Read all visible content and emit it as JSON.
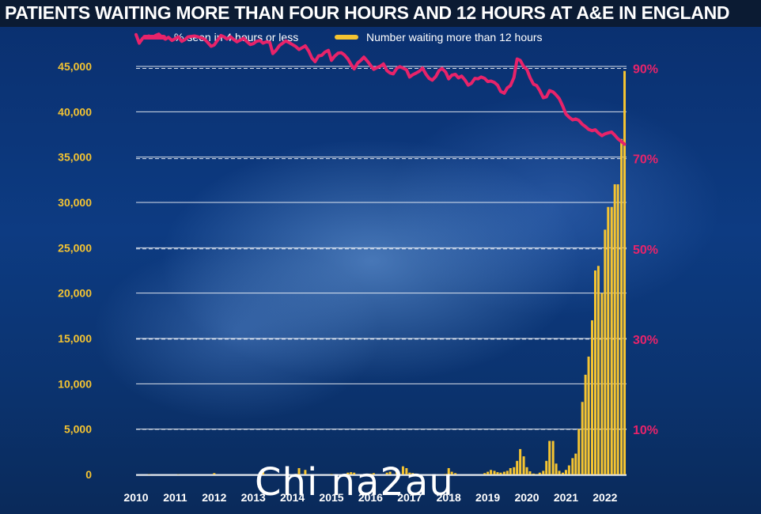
{
  "title": "PATIENTS WAITING MORE THAN FOUR HOURS AND 12 HOURS AT A&E IN ENGLAND",
  "watermark": "Chi na2au",
  "colors": {
    "line": "#e8236a",
    "bars": "#f5c431",
    "background": "#0d3b82"
  },
  "chart_data": {
    "type": "line+bar",
    "title": "PATIENTS WAITING MORE THAN FOUR HOURS AND 12 HOURS AT A&E IN ENGLAND",
    "grid": true,
    "legend_position": "top",
    "x_ticks": [
      "2010",
      "2011",
      "2012",
      "2013",
      "2014",
      "2015",
      "2016",
      "2017",
      "2018",
      "2019",
      "2020",
      "2021",
      "2022"
    ],
    "x_range": [
      2010.0,
      2022.55
    ],
    "left_axis": {
      "label": "",
      "range": [
        0,
        45000
      ],
      "ticks": [
        "45,000",
        "40,000",
        "35,000",
        "30,000",
        "25,000",
        "20,000",
        "15,000",
        "10,000",
        "5,000",
        "0"
      ]
    },
    "right_axis": {
      "label": "",
      "range": [
        0,
        100
      ],
      "ticks": [
        "90%",
        "70%",
        "50%",
        "30%",
        "10%"
      ]
    },
    "series": [
      {
        "name": "% seen in 4 hours or less",
        "kind": "line",
        "axis": "right",
        "x": [
          2010.0,
          2010.08,
          2010.17,
          2010.25,
          2010.33,
          2010.42,
          2010.5,
          2010.58,
          2010.67,
          2010.75,
          2010.83,
          2010.92,
          2011.0,
          2011.08,
          2011.17,
          2011.25,
          2011.33,
          2011.42,
          2011.5,
          2011.58,
          2011.67,
          2011.75,
          2011.83,
          2011.92,
          2012.0,
          2012.08,
          2012.17,
          2012.25,
          2012.33,
          2012.42,
          2012.5,
          2012.58,
          2012.67,
          2012.75,
          2012.83,
          2012.92,
          2013.0,
          2013.08,
          2013.17,
          2013.25,
          2013.33,
          2013.42,
          2013.5,
          2013.58,
          2013.67,
          2013.75,
          2013.83,
          2013.92,
          2014.0,
          2014.08,
          2014.17,
          2014.25,
          2014.33,
          2014.42,
          2014.5,
          2014.58,
          2014.67,
          2014.75,
          2014.83,
          2014.92,
          2015.0,
          2015.08,
          2015.17,
          2015.25,
          2015.33,
          2015.42,
          2015.5,
          2015.58,
          2015.67,
          2015.75,
          2015.83,
          2015.92,
          2016.0,
          2016.08,
          2016.17,
          2016.25,
          2016.33,
          2016.42,
          2016.5,
          2016.58,
          2016.67,
          2016.75,
          2016.83,
          2016.92,
          2017.0,
          2017.08,
          2017.17,
          2017.25,
          2017.33,
          2017.42,
          2017.5,
          2017.58,
          2017.67,
          2017.75,
          2017.83,
          2017.92,
          2018.0,
          2018.08,
          2018.17,
          2018.25,
          2018.33,
          2018.42,
          2018.5,
          2018.58,
          2018.67,
          2018.75,
          2018.83,
          2018.92,
          2019.0,
          2019.08,
          2019.17,
          2019.25,
          2019.33,
          2019.42,
          2019.5,
          2019.58,
          2019.67,
          2019.75,
          2019.83,
          2019.92,
          2020.0,
          2020.08,
          2020.17,
          2020.25,
          2020.33,
          2020.42,
          2020.5,
          2020.58,
          2020.67,
          2020.75,
          2020.83,
          2020.92,
          2021.0,
          2021.08,
          2021.17,
          2021.25,
          2021.33,
          2021.42,
          2021.5,
          2021.58,
          2021.67,
          2021.75,
          2021.83,
          2021.92,
          2022.0,
          2022.08,
          2022.17,
          2022.25,
          2022.33,
          2022.42,
          2022.5
        ],
        "values": [
          97.5,
          95.6,
          96.7,
          97.0,
          97.2,
          96.8,
          97.3,
          97.6,
          96.9,
          96.5,
          96.9,
          96.2,
          96.6,
          97.0,
          96.0,
          96.4,
          97.0,
          97.1,
          97.2,
          97.0,
          96.8,
          96.5,
          95.8,
          94.9,
          95.2,
          96.2,
          97.3,
          97.0,
          96.5,
          97.0,
          96.4,
          95.9,
          96.3,
          96.7,
          96.0,
          95.3,
          95.5,
          96.0,
          96.2,
          95.6,
          95.9,
          95.8,
          93.3,
          94.0,
          95.1,
          95.6,
          96.1,
          95.7,
          95.3,
          94.9,
          94.2,
          94.6,
          95.0,
          93.8,
          92.3,
          91.5,
          92.8,
          92.9,
          93.6,
          94.0,
          91.8,
          92.7,
          93.4,
          93.5,
          93.0,
          92.1,
          90.9,
          89.9,
          91.2,
          91.8,
          92.5,
          91.6,
          90.7,
          89.8,
          90.2,
          90.5,
          91.0,
          89.5,
          89.0,
          88.8,
          90.0,
          90.4,
          90.1,
          89.7,
          88.1,
          88.6,
          89.0,
          89.4,
          90.1,
          88.7,
          87.8,
          87.4,
          88.2,
          89.5,
          90.0,
          89.2,
          87.7,
          88.5,
          88.7,
          87.9,
          88.3,
          87.4,
          86.3,
          86.7,
          87.8,
          87.7,
          88.1,
          87.8,
          87.1,
          87.2,
          86.9,
          86.3,
          84.9,
          84.5,
          85.7,
          86.2,
          88.0,
          92.1,
          91.8,
          90.4,
          89.8,
          88.0,
          86.5,
          86.2,
          85.1,
          83.5,
          83.7,
          85.1,
          84.8,
          84.1,
          83.3,
          81.6,
          79.9,
          79.2,
          78.6,
          78.8,
          78.5,
          77.6,
          77.1,
          76.5,
          76.2,
          76.4,
          75.7,
          75.1,
          75.5,
          75.7,
          75.9,
          75.2,
          74.4,
          73.8,
          73.2
        ]
      },
      {
        "name": "Number waiting more than 12 hours",
        "kind": "bar",
        "axis": "left",
        "x": [
          2010.33,
          2011.08,
          2012.0,
          2013.25,
          2014.17,
          2014.33,
          2015.0,
          2015.42,
          2015.5,
          2015.58,
          2016.0,
          2016.08,
          2016.42,
          2016.5,
          2016.67,
          2016.83,
          2016.92,
          2017.0,
          2017.08,
          2017.17,
          2017.92,
          2018.0,
          2018.08,
          2018.17,
          2018.92,
          2019.0,
          2019.08,
          2019.17,
          2019.25,
          2019.33,
          2019.42,
          2019.5,
          2019.58,
          2019.67,
          2019.75,
          2019.83,
          2019.92,
          2020.0,
          2020.08,
          2020.17,
          2020.25,
          2020.33,
          2020.42,
          2020.5,
          2020.58,
          2020.67,
          2020.75,
          2020.83,
          2020.92,
          2021.0,
          2021.08,
          2021.17,
          2021.25,
          2021.33,
          2021.42,
          2021.5,
          2021.58,
          2021.67,
          2021.75,
          2021.83,
          2021.92,
          2022.0,
          2022.08,
          2022.17,
          2022.25,
          2022.33,
          2022.42,
          2022.5
        ],
        "values": [
          30,
          20,
          150,
          250,
          700,
          500,
          50,
          200,
          250,
          200,
          80,
          150,
          200,
          300,
          600,
          900,
          700,
          200,
          150,
          50,
          60,
          700,
          300,
          150,
          150,
          300,
          500,
          400,
          250,
          200,
          300,
          400,
          700,
          800,
          1500,
          2800,
          2000,
          800,
          350,
          100,
          50,
          200,
          400,
          1500,
          3700,
          3700,
          1200,
          400,
          200,
          500,
          1000,
          1800,
          2300,
          5000,
          8000,
          11000,
          13000,
          17000,
          22500,
          23000,
          20000,
          27000,
          29500,
          29500,
          32000,
          32000,
          37000,
          44500
        ]
      }
    ]
  }
}
